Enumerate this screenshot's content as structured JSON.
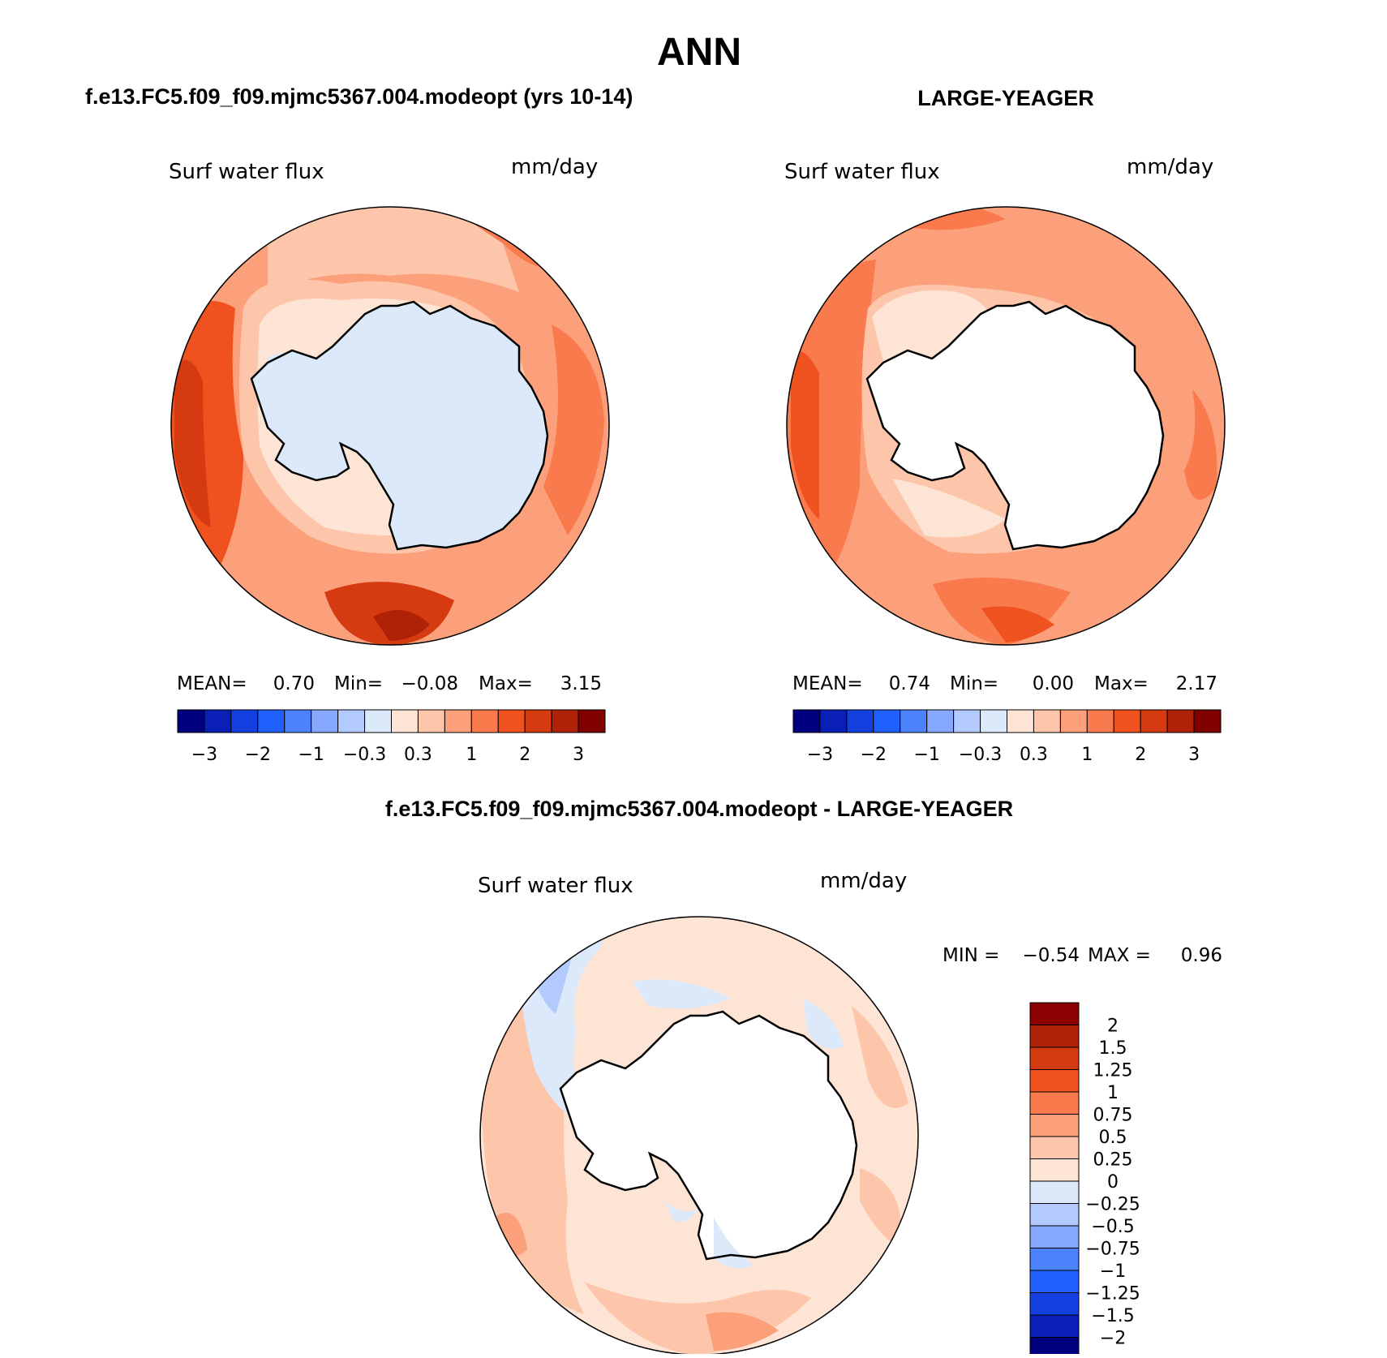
{
  "page": {
    "season": "ANN",
    "panel_test_title": "f.e13.FC5.f09_f09.mjmc5367.004.modeopt (yrs 10-14)",
    "panel_obs_title": "LARGE-YEAGER",
    "panel_diff_title": "f.e13.FC5.f09_f09.mjmc5367.004.modeopt - LARGE-YEAGER"
  },
  "panels": {
    "test": {
      "variable": "Surf water flux",
      "units": "mm/day",
      "stats": {
        "mean_label": "MEAN=",
        "mean": "0.70",
        "min_label": "Min=",
        "min": "−0.08",
        "max_label": "Max=",
        "max": "3.15"
      }
    },
    "obs": {
      "variable": "Surf water flux",
      "units": "mm/day",
      "stats": {
        "mean_label": "MEAN=",
        "mean": "0.74",
        "min_label": "Min=",
        "min": "0.00",
        "max_label": "Max=",
        "max": "2.17"
      }
    },
    "diff": {
      "variable": "Surf water flux",
      "units": "mm/day",
      "stats": {
        "min_label": "MIN =",
        "min": "−0.54",
        "max_label": "MAX =",
        "max": "0.96"
      }
    }
  },
  "colorbar_main": {
    "colors": [
      "#00007f",
      "#0a1fb5",
      "#1440e0",
      "#2060ff",
      "#4d82ff",
      "#87a8ff",
      "#b3caff",
      "#dce9fb",
      "#fde4d4",
      "#fdc6aa",
      "#fba07a",
      "#f97a4c",
      "#f0521f",
      "#d63a10",
      "#b02208",
      "#800000"
    ],
    "labels": [
      "−3",
      "−2",
      "−1",
      "−0.3",
      "0.3",
      "1",
      "2",
      "3"
    ]
  },
  "colorbar_diff": {
    "colors_top_to_bottom": [
      "#8b0000",
      "#b02208",
      "#d63a10",
      "#f0521f",
      "#f97a4c",
      "#fba07a",
      "#fdc6aa",
      "#fde4d4",
      "#dce9fb",
      "#b3caff",
      "#87a8ff",
      "#4d82ff",
      "#2060ff",
      "#1440e0",
      "#0a1fb5",
      "#00007f"
    ],
    "labels_top_to_bottom": [
      "2",
      "1.5",
      "1.25",
      "1",
      "0.75",
      "0.5",
      "0.25",
      "0",
      "−0.25",
      "−0.5",
      "−0.75",
      "−1",
      "−1.25",
      "−1.5",
      "−2"
    ]
  }
}
